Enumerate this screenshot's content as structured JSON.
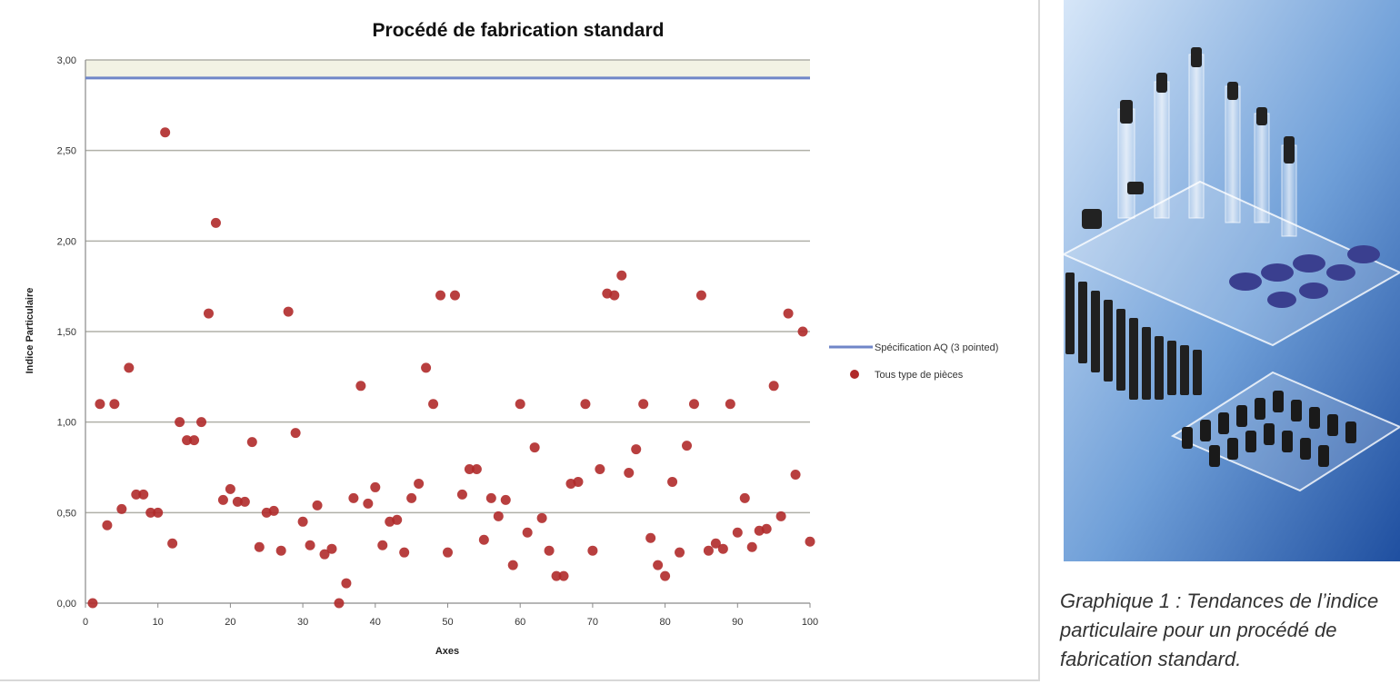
{
  "chart_data": {
    "type": "scatter",
    "title": "Procédé de fabrication standard",
    "xlabel": "Axes",
    "ylabel": "Indice Particulaire",
    "xlim": [
      0,
      100
    ],
    "ylim": [
      0,
      3
    ],
    "x_ticks": [
      "0",
      "10",
      "20",
      "30",
      "40",
      "50",
      "60",
      "70",
      "80",
      "90",
      "100"
    ],
    "y_ticks": [
      "0,00",
      "0,50",
      "1,00",
      "1,50",
      "2,00",
      "2,50",
      "3,00"
    ],
    "grid": true,
    "legend_position": "right",
    "series": [
      {
        "name": "Spécification AQ (3 pointed)",
        "type": "line",
        "color": "#6f86c8",
        "value": 2.9
      },
      {
        "name": "Tous type de pièces",
        "type": "scatter",
        "color": "#b02a2a",
        "points": [
          [
            1,
            0.0
          ],
          [
            2,
            1.1
          ],
          [
            3,
            0.43
          ],
          [
            4,
            1.1
          ],
          [
            5,
            0.52
          ],
          [
            6,
            1.3
          ],
          [
            7,
            0.6
          ],
          [
            8,
            0.6
          ],
          [
            9,
            0.5
          ],
          [
            10,
            0.5
          ],
          [
            11,
            2.6
          ],
          [
            12,
            0.33
          ],
          [
            13,
            1.0
          ],
          [
            14,
            0.9
          ],
          [
            15,
            0.9
          ],
          [
            16,
            1.0
          ],
          [
            17,
            1.6
          ],
          [
            18,
            2.1
          ],
          [
            19,
            0.57
          ],
          [
            20,
            0.63
          ],
          [
            21,
            0.56
          ],
          [
            22,
            0.56
          ],
          [
            23,
            0.89
          ],
          [
            24,
            0.31
          ],
          [
            25,
            0.5
          ],
          [
            26,
            0.51
          ],
          [
            27,
            0.29
          ],
          [
            28,
            1.61
          ],
          [
            29,
            0.94
          ],
          [
            30,
            0.45
          ],
          [
            31,
            0.32
          ],
          [
            32,
            0.54
          ],
          [
            33,
            0.27
          ],
          [
            34,
            0.3
          ],
          [
            35,
            0.0
          ],
          [
            36,
            0.11
          ],
          [
            37,
            0.58
          ],
          [
            38,
            1.2
          ],
          [
            39,
            0.55
          ],
          [
            40,
            0.64
          ],
          [
            41,
            0.32
          ],
          [
            42,
            0.45
          ],
          [
            43,
            0.46
          ],
          [
            44,
            0.28
          ],
          [
            45,
            0.58
          ],
          [
            46,
            0.66
          ],
          [
            47,
            1.3
          ],
          [
            48,
            1.1
          ],
          [
            49,
            1.7
          ],
          [
            50,
            0.28
          ],
          [
            51,
            1.7
          ],
          [
            52,
            0.6
          ],
          [
            53,
            0.74
          ],
          [
            54,
            0.74
          ],
          [
            55,
            0.35
          ],
          [
            56,
            0.58
          ],
          [
            57,
            0.48
          ],
          [
            58,
            0.57
          ],
          [
            59,
            0.21
          ],
          [
            60,
            1.1
          ],
          [
            61,
            0.39
          ],
          [
            62,
            0.86
          ],
          [
            63,
            0.47
          ],
          [
            64,
            0.29
          ],
          [
            65,
            0.15
          ],
          [
            66,
            0.15
          ],
          [
            67,
            0.66
          ],
          [
            68,
            0.67
          ],
          [
            69,
            1.1
          ],
          [
            70,
            0.29
          ],
          [
            71,
            0.74
          ],
          [
            72,
            1.71
          ],
          [
            73,
            1.7
          ],
          [
            74,
            1.81
          ],
          [
            75,
            0.72
          ],
          [
            76,
            0.85
          ],
          [
            77,
            1.1
          ],
          [
            78,
            0.36
          ],
          [
            79,
            0.21
          ],
          [
            80,
            0.15
          ],
          [
            81,
            0.67
          ],
          [
            82,
            0.28
          ],
          [
            83,
            0.87
          ],
          [
            84,
            1.1
          ],
          [
            85,
            1.7
          ],
          [
            86,
            0.29
          ],
          [
            87,
            0.33
          ],
          [
            88,
            0.3
          ],
          [
            89,
            1.1
          ],
          [
            90,
            0.39
          ],
          [
            91,
            0.58
          ],
          [
            92,
            0.31
          ],
          [
            93,
            0.4
          ],
          [
            94,
            0.41
          ],
          [
            95,
            1.2
          ],
          [
            96,
            0.48
          ],
          [
            97,
            1.6
          ],
          [
            98,
            0.71
          ],
          [
            99,
            1.5
          ],
          [
            100,
            0.34
          ]
        ]
      }
    ]
  },
  "caption": "Graphique 1 : Tendances de l’indice particulaire pour un procédé de fabrication standard."
}
